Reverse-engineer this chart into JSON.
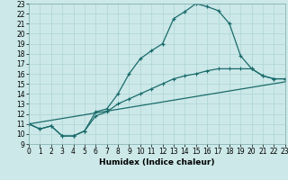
{
  "title": "",
  "xlabel": "Humidex (Indice chaleur)",
  "bg_color": "#cce8e8",
  "line_color": "#1a6b6b",
  "line1_x": [
    0,
    1,
    2,
    3,
    4,
    5,
    6,
    7,
    8,
    9,
    10,
    11,
    12,
    13,
    14,
    15,
    16,
    17,
    18,
    19,
    20,
    21,
    22,
    23
  ],
  "line1_y": [
    11,
    10.5,
    10.8,
    9.8,
    9.8,
    10.3,
    12.2,
    12.5,
    14.0,
    16.0,
    17.5,
    18.3,
    19.0,
    21.5,
    22.2,
    23.0,
    22.7,
    22.3,
    21.0,
    17.8,
    16.5,
    15.8,
    15.5,
    15.5
  ],
  "line2_x": [
    0,
    1,
    2,
    3,
    4,
    5,
    6,
    7,
    8,
    9,
    10,
    11,
    12,
    13,
    14,
    15,
    16,
    17,
    18,
    19,
    20,
    21,
    22,
    23
  ],
  "line2_y": [
    11,
    10.5,
    10.8,
    9.8,
    9.8,
    10.3,
    11.8,
    12.2,
    13.0,
    13.5,
    14.0,
    14.5,
    15.0,
    15.5,
    15.8,
    16.0,
    16.3,
    16.5,
    16.5,
    16.5,
    16.5,
    15.8,
    15.5,
    15.5
  ],
  "line3_x": [
    0,
    23
  ],
  "line3_y": [
    11,
    15.2
  ],
  "xlim": [
    0,
    23
  ],
  "ylim": [
    9,
    23
  ],
  "xticks": [
    0,
    1,
    2,
    3,
    4,
    5,
    6,
    7,
    8,
    9,
    10,
    11,
    12,
    13,
    14,
    15,
    16,
    17,
    18,
    19,
    20,
    21,
    22,
    23
  ],
  "yticks": [
    9,
    10,
    11,
    12,
    13,
    14,
    15,
    16,
    17,
    18,
    19,
    20,
    21,
    22,
    23
  ],
  "grid_color": "#aed4d4",
  "tick_fontsize": 5.5,
  "xlabel_fontsize": 6.5
}
